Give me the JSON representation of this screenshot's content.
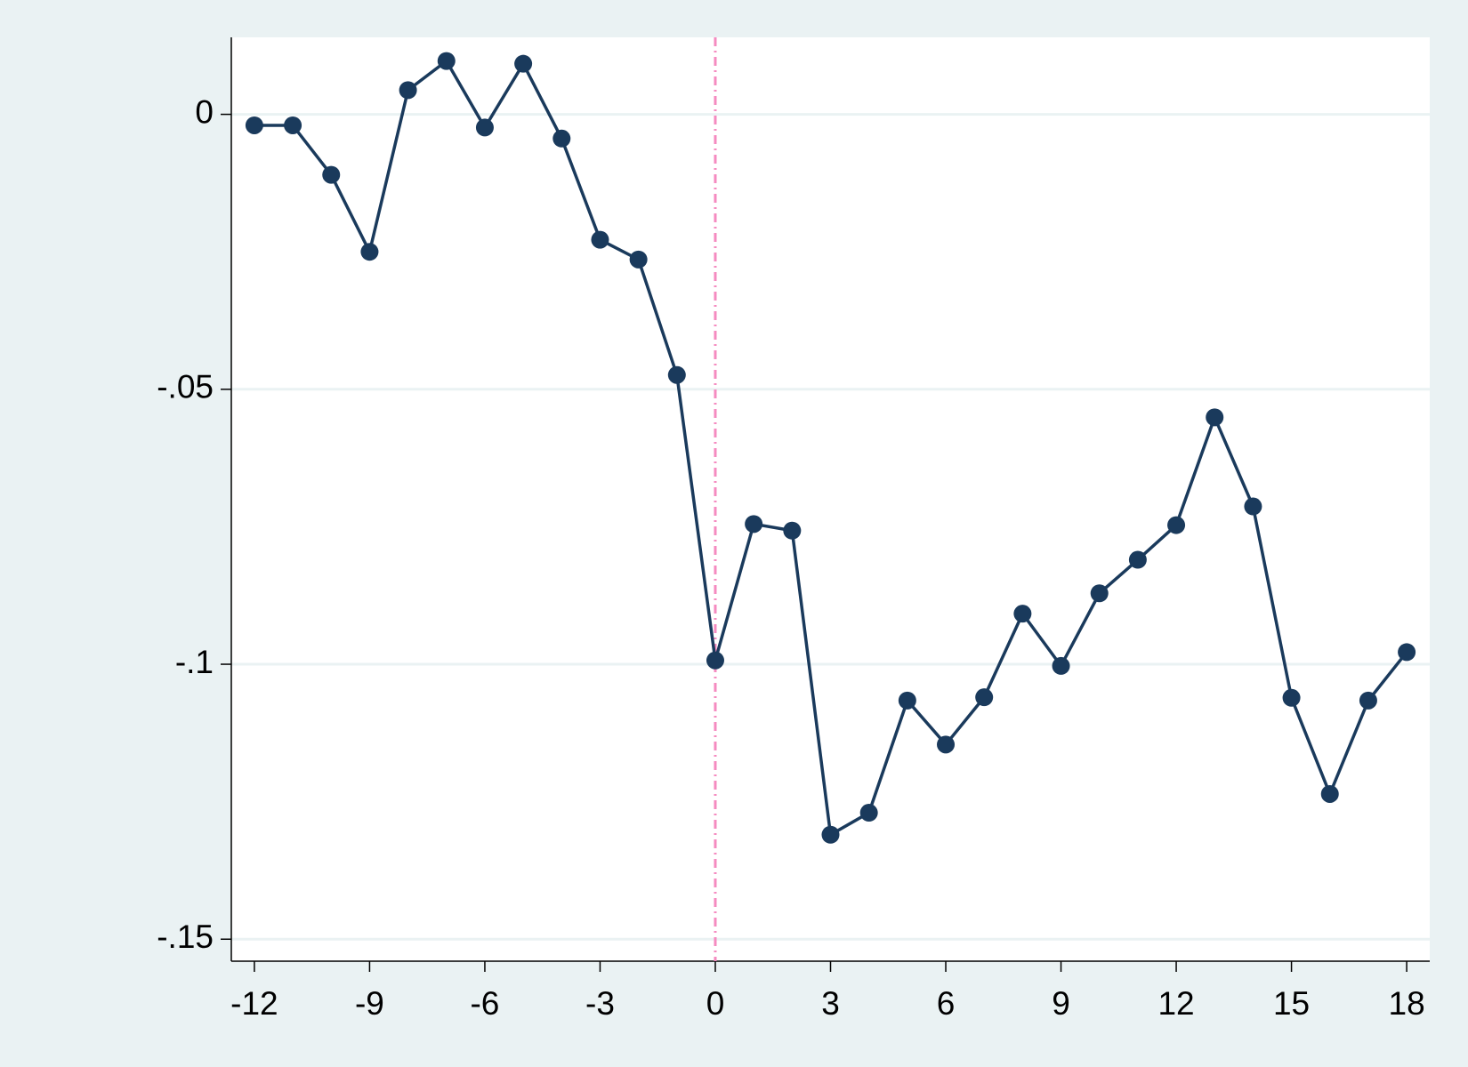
{
  "chart_data": {
    "type": "line",
    "x": [
      -12,
      -11,
      -10,
      -9,
      -8,
      -7,
      -6,
      -5,
      -4,
      -3,
      -2,
      -1,
      0,
      1,
      2,
      3,
      4,
      5,
      6,
      7,
      8,
      9,
      10,
      11,
      12,
      13,
      14,
      15,
      16,
      17,
      18
    ],
    "series": [
      {
        "color": "#1a3a5c",
        "values": [
          -0.002,
          -0.002,
          -0.011,
          -0.025,
          0.0044,
          0.0097,
          -0.0024,
          0.0092,
          -0.0044,
          -0.0228,
          -0.0264,
          -0.0474,
          -0.0993,
          -0.0745,
          -0.0757,
          -0.131,
          -0.127,
          -0.1066,
          -0.1146,
          -0.106,
          -0.0908,
          -0.1003,
          -0.0871,
          -0.081,
          -0.0747,
          -0.0551,
          -0.0713,
          -0.1061,
          -0.1236,
          -0.1066,
          -0.0978
        ]
      }
    ],
    "xlim": [
      -12.6,
      18.6
    ],
    "ylim": [
      -0.154,
      0.014
    ],
    "xticks": [
      -12,
      -9,
      -6,
      -3,
      0,
      3,
      6,
      9,
      12,
      15,
      18
    ],
    "yticks": [
      0,
      {
        "value": -0.05,
        "label": "-.05"
      },
      {
        "value": -0.1,
        "label": "-.1"
      },
      {
        "value": -0.15,
        "label": "-.15"
      }
    ],
    "grid": true,
    "xline": 0,
    "xline_color": "#f58bc0"
  }
}
